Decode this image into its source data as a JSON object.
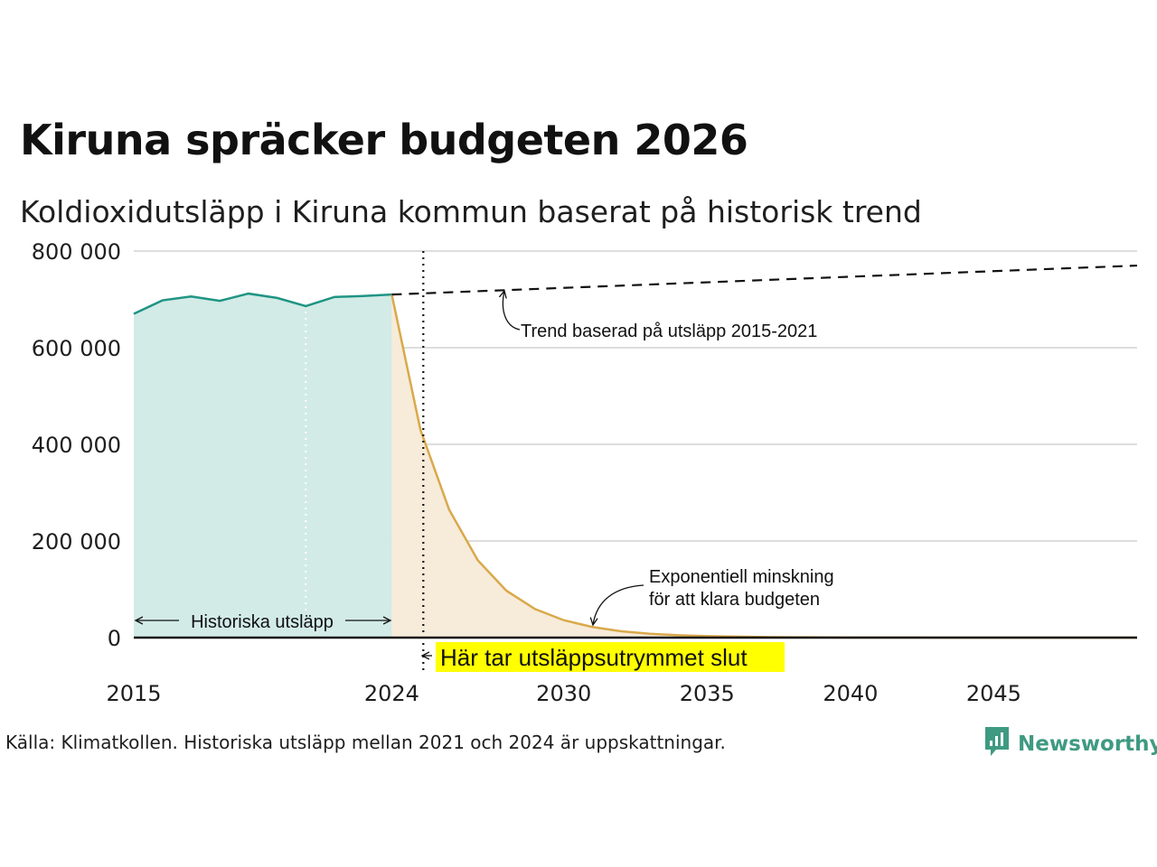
{
  "title": "Kiruna spräcker budgeten 2026",
  "subtitle": "Koldioxidutsläpp i Kiruna kommun baserat på historisk trend",
  "source": "Källa: Klimatkollen. Historiska utsläpp mellan 2021 och 2024 är uppskattningar.",
  "brand": "Newsworthy",
  "colors": {
    "historic_line": "#1f9484",
    "historic_fill": "#d2ebe6",
    "forecast_line": "#d9a94a",
    "forecast_fill": "#f7ebda",
    "trend_line": "#111111",
    "grid": "#dddddd",
    "highlight": "#ffff00",
    "brand": "#3f9a82"
  },
  "chart_data": {
    "type": "area",
    "xlim": [
      2015,
      2050
    ],
    "ylim": [
      0,
      800000
    ],
    "x_ticks": [
      {
        "value": 2015,
        "label": "2015"
      },
      {
        "value": 2024,
        "label": "2024"
      },
      {
        "value": 2030,
        "label": "2030"
      },
      {
        "value": 2035,
        "label": "2035"
      },
      {
        "value": 2040,
        "label": "2040"
      },
      {
        "value": 2045,
        "label": "2045"
      }
    ],
    "y_ticks": [
      {
        "value": 0,
        "label": "0"
      },
      {
        "value": 200000,
        "label": "200 000"
      },
      {
        "value": 400000,
        "label": "400 000"
      },
      {
        "value": 600000,
        "label": "600 000"
      },
      {
        "value": 800000,
        "label": "800 000"
      }
    ],
    "series": [
      {
        "key": "historic",
        "x": [
          2015,
          2016,
          2017,
          2018,
          2019,
          2020,
          2021,
          2022,
          2023,
          2024
        ],
        "y": [
          670000,
          698000,
          706000,
          697000,
          712000,
          703000,
          686000,
          705000,
          707000,
          710000
        ]
      },
      {
        "key": "forecast",
        "x": [
          2024,
          2025,
          2026,
          2027,
          2028,
          2029,
          2030,
          2031,
          2032,
          2033,
          2034,
          2035,
          2036,
          2037,
          2038,
          2040,
          2043,
          2046,
          2050
        ],
        "y": [
          710000,
          430000,
          265000,
          160000,
          97000,
          59000,
          36000,
          22000,
          13000,
          8000,
          5000,
          3000,
          2000,
          1200,
          700,
          300,
          100,
          40,
          10
        ]
      },
      {
        "key": "trend",
        "x": [
          2024,
          2050
        ],
        "y": [
          710000,
          770000
        ]
      }
    ],
    "budget_end_year": 2025.1,
    "historic_marker_year": 2021,
    "annotations": {
      "trend": "Trend baserad på utsläpp 2015-2021",
      "exp_line1": "Exponentiell minskning",
      "exp_line2": "för att klara budgeten",
      "historic": "Historiska utsläpp",
      "budget_end": "Här tar utsläppsutrymmet slut"
    }
  }
}
